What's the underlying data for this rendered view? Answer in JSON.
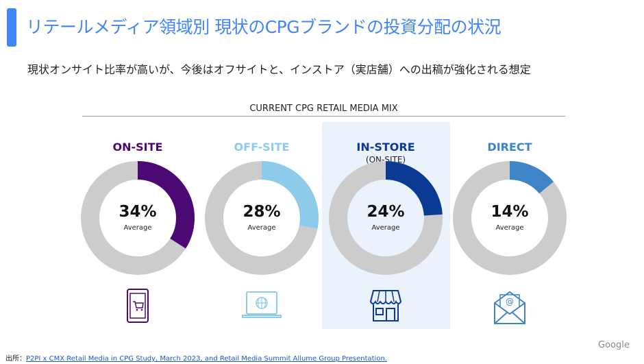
{
  "header": {
    "title": "リテールメディア領域別 現状のCPGブランドの投資分配の状況",
    "subtitle": "現状オンサイト比率が高いが、今後はオフサイトと、インストア（実店舗）への出稿が強化される想定"
  },
  "chart_data": {
    "type": "pie",
    "title": "CURRENT CPG RETAIL MEDIA MIX",
    "remainder_color": "#cccccc",
    "segments": [
      {
        "label": "ON-SITE",
        "sublabel": "",
        "value": 34,
        "value_label": "34%",
        "caption": "Average",
        "color": "#4b0a73",
        "icon": "smartphone-cart-icon"
      },
      {
        "label": "OFF-SITE",
        "sublabel": "",
        "value": 28,
        "value_label": "28%",
        "caption": "Average",
        "color": "#8ecae9",
        "icon": "laptop-globe-icon"
      },
      {
        "label": "IN-STORE",
        "sublabel": "(ON-SITE)",
        "value": 24,
        "value_label": "24%",
        "caption": "Average",
        "color": "#0b3a95",
        "icon": "storefront-icon",
        "highlighted": true
      },
      {
        "label": "DIRECT",
        "sublabel": "",
        "value": 14,
        "value_label": "14%",
        "caption": "Average",
        "color": "#3d85c6",
        "icon": "envelope-at-icon"
      }
    ]
  },
  "footer": {
    "source_label": "出所：",
    "source_link": "P2PI x CMX Retail Media in CPG Study, March 2023, and Retail Media Summit Allume Group Presentation.",
    "brand": "Google"
  }
}
